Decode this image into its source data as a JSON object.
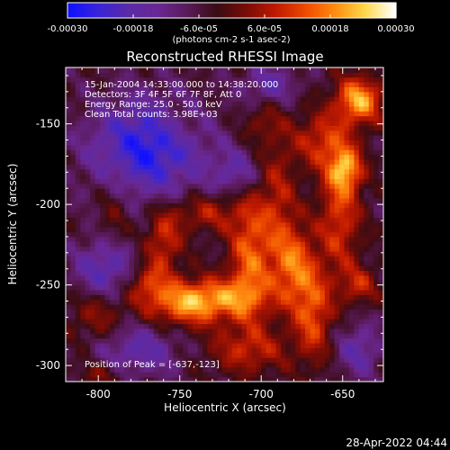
{
  "chart_data": {
    "type": "heatmap",
    "title": "Reconstructed RHESSI Image",
    "xlabel": "Heliocentric X (arcsec)",
    "ylabel": "Heliocentric Y (arcsec)",
    "xlim": [
      -820,
      -625
    ],
    "ylim": [
      -310,
      -115
    ],
    "x_ticks": [
      -800,
      -750,
      -700,
      -650
    ],
    "y_ticks": [
      -300,
      -250,
      -200,
      -150
    ],
    "x_tick_labels": [
      "-800",
      "-750",
      "-700",
      "-650"
    ],
    "y_tick_labels": [
      "-300",
      "-250",
      "-200",
      "-150"
    ],
    "annotations": [
      "15-Jan-2004 14:33:00.000 to 14:38:20.000",
      "Detectors: 3F 4F 5F 6F 7F 8F, Att 0",
      "Energy Range: 25.0 - 50.0 keV",
      "Clean    Total counts: 3.98E+03"
    ],
    "peak_label": "Position of Peak = [-637,-123]",
    "peak_position": [
      -637,
      -123
    ],
    "colorbar": {
      "min": -0.0003,
      "max": 0.0003,
      "ticks": [
        -0.0003,
        -0.00018,
        -6e-05,
        6e-05,
        0.00018,
        0.0003
      ],
      "tick_labels": [
        "-0.00030",
        "-0.00018",
        "-6.0e-05",
        "6.0e-05",
        "0.00018",
        "0.00030"
      ],
      "unit_label": "(photons cm-2 s-1 asec-2)",
      "colormap": [
        "#1010ff",
        "#3a24d8",
        "#5a2aa8",
        "#6a2894",
        "#5a1a5a",
        "#3a0c14",
        "#7a0c06",
        "#c01a00",
        "#ee4a00",
        "#ff8c10",
        "#ffd84a",
        "#ffffff"
      ]
    },
    "bright_sources": [
      {
        "x": -707,
        "y": -232,
        "sx": 9,
        "sy": 28,
        "v": 0.00019
      },
      {
        "x": -725,
        "y": -258,
        "sx": 20,
        "sy": 9,
        "v": 0.00017
      },
      {
        "x": -748,
        "y": -262,
        "sx": 17,
        "sy": 10,
        "v": 0.00018
      },
      {
        "x": -760,
        "y": -222,
        "sx": 8,
        "sy": 14,
        "v": 0.00015
      },
      {
        "x": -770,
        "y": -248,
        "sx": 9,
        "sy": 9,
        "v": 0.00014
      },
      {
        "x": -735,
        "y": -205,
        "sx": 15,
        "sy": 8,
        "v": 0.00012
      },
      {
        "x": -690,
        "y": -198,
        "sx": 8,
        "sy": 30,
        "v": 0.00011
      },
      {
        "x": -680,
        "y": -238,
        "sx": 9,
        "sy": 18,
        "v": 0.00019
      },
      {
        "x": -668,
        "y": -268,
        "sx": 8,
        "sy": 20,
        "v": 0.00017
      },
      {
        "x": -652,
        "y": -205,
        "sx": 9,
        "sy": 28,
        "v": 0.00016
      },
      {
        "x": -663,
        "y": -160,
        "sx": 12,
        "sy": 12,
        "v": 0.00014
      },
      {
        "x": -640,
        "y": -135,
        "sx": 10,
        "sy": 10,
        "v": 0.00026
      },
      {
        "x": -648,
        "y": -178,
        "sx": 7,
        "sy": 9,
        "v": 0.0002
      },
      {
        "x": -708,
        "y": -290,
        "sx": 18,
        "sy": 10,
        "v": 0.00012
      },
      {
        "x": -800,
        "y": -268,
        "sx": 12,
        "sy": 12,
        "v": 0.0001
      },
      {
        "x": -790,
        "y": -205,
        "sx": 8,
        "sy": 20,
        "v": 7e-05
      },
      {
        "x": -798,
        "y": -305,
        "sx": 10,
        "sy": 5,
        "v": 8e-05
      },
      {
        "x": -640,
        "y": -250,
        "sx": 8,
        "sy": 8,
        "v": 0.00012
      },
      {
        "x": -700,
        "y": -150,
        "sx": 8,
        "sy": 8,
        "v": 7e-05
      },
      {
        "x": -750,
        "y": -150,
        "sx": 9,
        "sy": 9,
        "v": 5e-05
      }
    ],
    "dark_regions": [
      {
        "x": -770,
        "y": -165,
        "sx": 25,
        "sy": 22,
        "v": -0.00022
      },
      {
        "x": -795,
        "y": -240,
        "sx": 14,
        "sy": 14,
        "v": -0.00016
      },
      {
        "x": -715,
        "y": -180,
        "sx": 10,
        "sy": 10,
        "v": -0.00012
      },
      {
        "x": -775,
        "y": -290,
        "sx": 18,
        "sy": 12,
        "v": -0.00013
      },
      {
        "x": -695,
        "y": -125,
        "sx": 12,
        "sy": 8,
        "v": -0.00012
      },
      {
        "x": -640,
        "y": -290,
        "sx": 10,
        "sy": 12,
        "v": -0.00012
      }
    ]
  },
  "footer": {
    "timestamp": "28-Apr-2022 04:44"
  }
}
